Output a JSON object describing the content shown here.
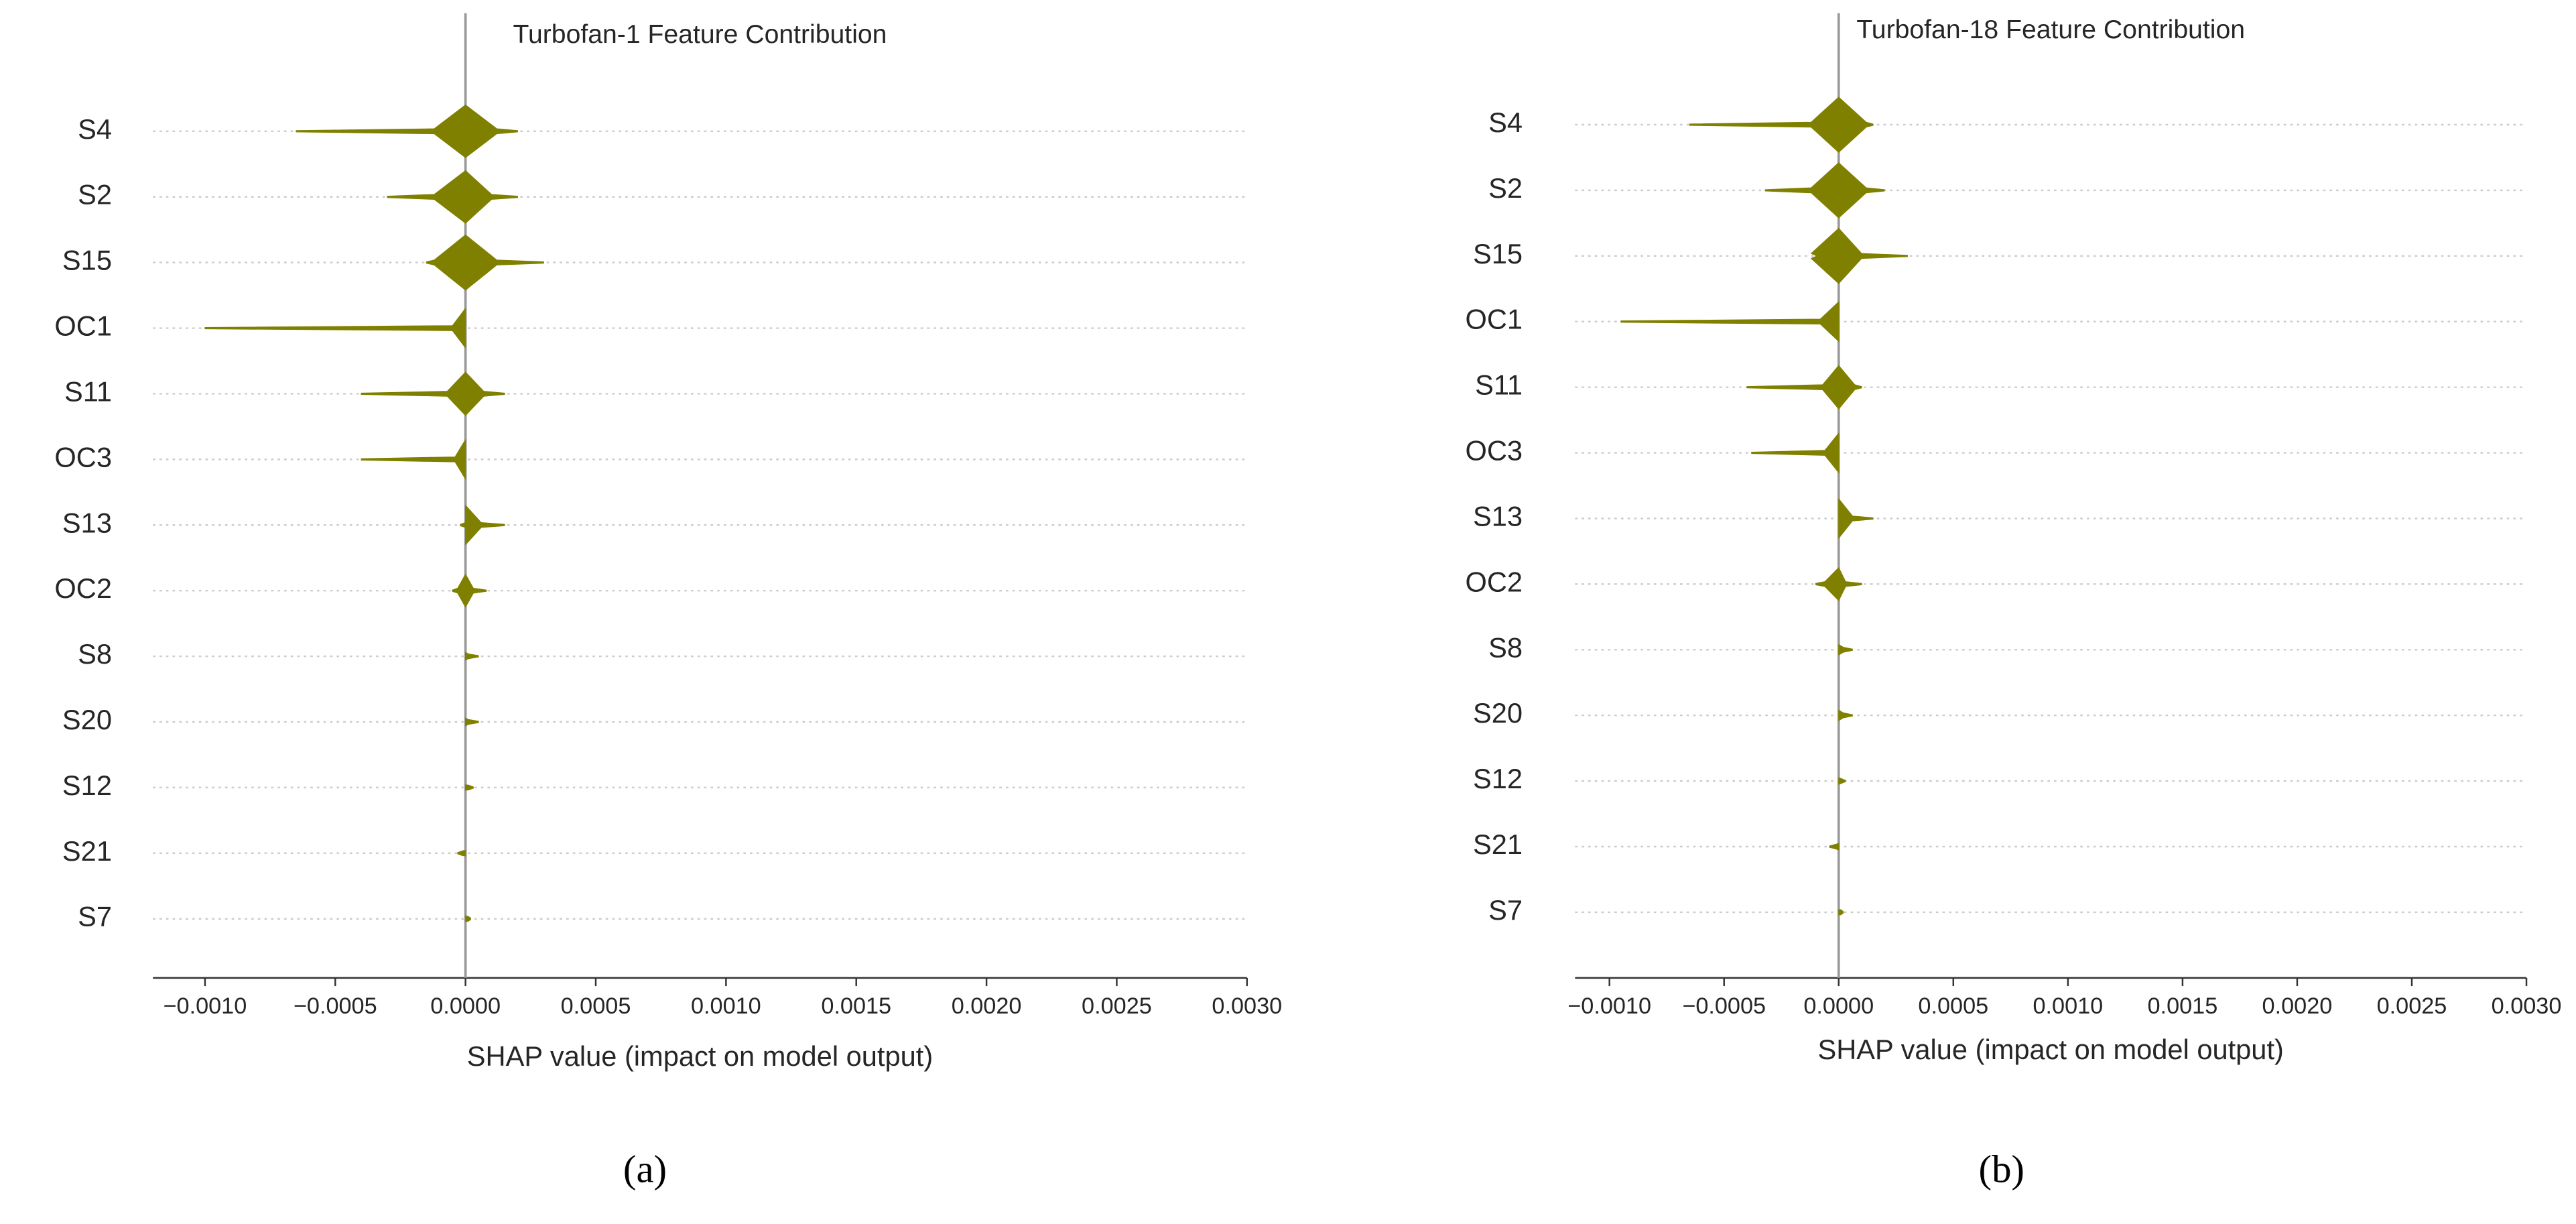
{
  "chart_data": [
    {
      "type": "violin",
      "title": "Turbofan-1 Feature Contribution",
      "xlabel": "SHAP value (impact on model output)",
      "panel_label": "(a)",
      "categories": [
        "S4",
        "S2",
        "S15",
        "OC1",
        "S11",
        "OC3",
        "S13",
        "OC2",
        "S8",
        "S20",
        "S12",
        "S21",
        "S7"
      ],
      "body": [
        [
          -0.00012,
          0.00012
        ],
        [
          -0.00012,
          0.0001
        ],
        [
          -0.00012,
          0.00012
        ],
        [
          -5e-05,
          0
        ],
        [
          -7e-05,
          7e-05
        ],
        [
          -4e-05,
          0
        ],
        [
          0,
          6e-05
        ],
        [
          -3e-05,
          3e-05
        ],
        [
          0,
          1e-05
        ],
        [
          0,
          1e-05
        ],
        [
          0,
          1e-05
        ],
        [
          -1e-05,
          0
        ],
        [
          0,
          1e-05
        ]
      ],
      "tail": [
        [
          -0.00065,
          0.0002
        ],
        [
          -0.0003,
          0.0002
        ],
        [
          -0.00015,
          0.0003
        ],
        [
          -0.001,
          0
        ],
        [
          -0.0004,
          0.00015
        ],
        [
          -0.0004,
          0
        ],
        [
          -2e-05,
          0.00015
        ],
        [
          -5e-05,
          8e-05
        ],
        [
          0,
          5e-05
        ],
        [
          0,
          5e-05
        ],
        [
          0,
          3e-05
        ],
        [
          -3e-05,
          0
        ],
        [
          0,
          2e-05
        ]
      ],
      "widths": [
        0.4,
        0.4,
        0.42,
        0.3,
        0.33,
        0.3,
        0.3,
        0.25,
        0.06,
        0.06,
        0.04,
        0.04,
        0.04
      ],
      "color": "#808000",
      "xlim": [
        -0.0012,
        0.003
      ],
      "xticks": [
        {
          "value": -0.001,
          "label": "−0.0010"
        },
        {
          "value": -0.0005,
          "label": "−0.0005"
        },
        {
          "value": 0,
          "label": "0.0000"
        },
        {
          "value": 0.0005,
          "label": "0.0005"
        },
        {
          "value": 0.001,
          "label": "0.0010"
        },
        {
          "value": 0.0015,
          "label": "0.0015"
        },
        {
          "value": 0.002,
          "label": "0.0020"
        },
        {
          "value": 0.0025,
          "label": "0.0025"
        },
        {
          "value": 0.003,
          "label": "0.0030"
        }
      ],
      "grid": true
    },
    {
      "type": "violin",
      "title": "Turbofan-18 Feature Contribution",
      "xlabel": "SHAP value (impact on model output)",
      "panel_label": "(b)",
      "categories": [
        "S4",
        "S2",
        "S15",
        "OC1",
        "S11",
        "OC3",
        "S13",
        "OC2",
        "S8",
        "S20",
        "S12",
        "S21",
        "S7"
      ],
      "body": [
        [
          -0.00012,
          0.00012
        ],
        [
          -0.00012,
          0.00012
        ],
        [
          -0.00012,
          0.0001
        ],
        [
          -8e-05,
          0
        ],
        [
          -7e-05,
          7e-05
        ],
        [
          -6e-05,
          0
        ],
        [
          0,
          6e-05
        ],
        [
          -6e-05,
          3e-05
        ],
        [
          0,
          2e-05
        ],
        [
          0,
          2e-05
        ],
        [
          0,
          1e-05
        ],
        [
          -1e-05,
          0
        ],
        [
          0,
          1e-05
        ]
      ],
      "tail": [
        [
          -0.00065,
          0.00015
        ],
        [
          -0.00032,
          0.0002
        ],
        [
          -0.0001,
          0.0003
        ],
        [
          -0.00095,
          0
        ],
        [
          -0.0004,
          0.0001
        ],
        [
          -0.00038,
          0
        ],
        [
          0,
          0.00015
        ],
        [
          -0.0001,
          0.0001
        ],
        [
          0,
          6e-05
        ],
        [
          0,
          6e-05
        ],
        [
          0,
          3e-05
        ],
        [
          -4e-05,
          0
        ],
        [
          0,
          2e-05
        ]
      ],
      "widths": [
        0.42,
        0.42,
        0.42,
        0.3,
        0.33,
        0.3,
        0.3,
        0.25,
        0.08,
        0.08,
        0.05,
        0.05,
        0.04
      ],
      "color": "#808000",
      "xlim": [
        -0.00115,
        0.003
      ],
      "xticks": [
        {
          "value": -0.001,
          "label": "−0.0010"
        },
        {
          "value": -0.0005,
          "label": "−0.0005"
        },
        {
          "value": 0,
          "label": "0.0000"
        },
        {
          "value": 0.0005,
          "label": "0.0005"
        },
        {
          "value": 0.001,
          "label": "0.0010"
        },
        {
          "value": 0.0015,
          "label": "0.0015"
        },
        {
          "value": 0.002,
          "label": "0.0020"
        },
        {
          "value": 0.0025,
          "label": "0.0025"
        },
        {
          "value": 0.003,
          "label": "0.0030"
        }
      ],
      "grid": true
    }
  ]
}
